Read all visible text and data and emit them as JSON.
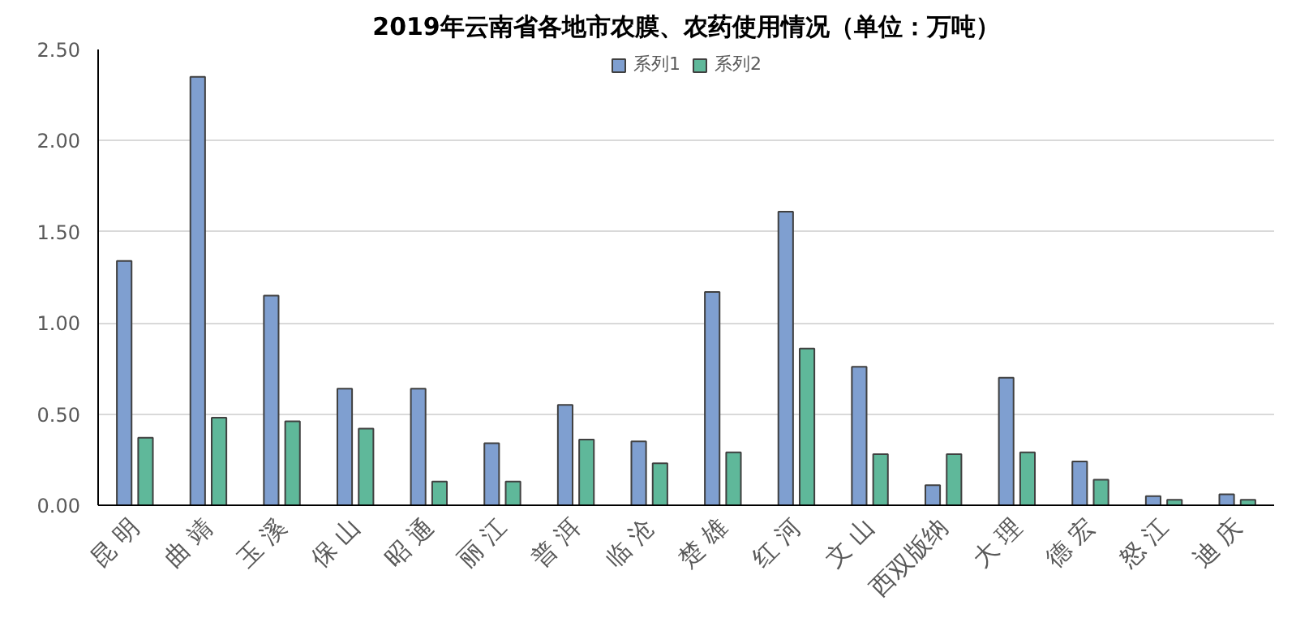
{
  "chart_data": {
    "type": "bar",
    "title": "2019年云南省各地市农膜、农药使用情况（单位：万吨）",
    "categories": [
      "昆 明",
      "曲 靖",
      "玉 溪",
      "保 山",
      "昭 通",
      "丽 江",
      "普 洱",
      "临 沧",
      "楚 雄",
      "红 河",
      "文 山",
      "西双版纳",
      "大 理",
      "德 宏",
      "怒 江",
      "迪 庆"
    ],
    "series": [
      {
        "name": "系列1",
        "color": "#7f9fd0",
        "values": [
          1.34,
          2.35,
          1.15,
          0.64,
          0.64,
          0.34,
          0.55,
          0.35,
          1.17,
          1.61,
          0.76,
          0.11,
          0.7,
          0.24,
          0.05,
          0.06
        ]
      },
      {
        "name": "系列2",
        "color": "#5fb89a",
        "values": [
          0.37,
          0.48,
          0.46,
          0.42,
          0.13,
          0.13,
          0.36,
          0.23,
          0.29,
          0.86,
          0.28,
          0.28,
          0.29,
          0.14,
          0.03,
          0.03
        ]
      }
    ],
    "ylim": [
      0,
      2.5
    ],
    "yticks": [
      {
        "value": 0,
        "label": "0.00"
      },
      {
        "value": 0.5,
        "label": "0.50"
      },
      {
        "value": 1,
        "label": "1.00"
      },
      {
        "value": 1.5,
        "label": "1.50"
      },
      {
        "value": 2,
        "label": "2.00"
      },
      {
        "value": 2.5,
        "label": "2.50"
      }
    ],
    "grid": "y",
    "legend": "top"
  }
}
